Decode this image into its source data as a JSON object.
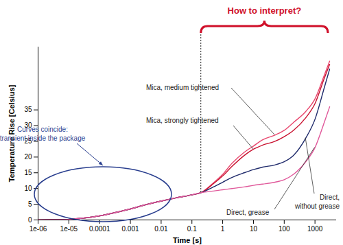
{
  "chart_data": {
    "type": "line",
    "x_label": "Time [s]",
    "y_label": "Temperature Rise [Celsius]",
    "annotations": [
      "How to interpret?",
      "Curves coincide: transient inside the package"
    ],
    "log": "x",
    "grid": false,
    "x": [
      1e-06,
      3e-06,
      1e-05,
      3e-05,
      0.0001,
      0.0003,
      0.001,
      0.003,
      0.01,
      0.03,
      0.1,
      0.2,
      0.5,
      1,
      2,
      5,
      10,
      20,
      50,
      100,
      200,
      500,
      1000,
      2000,
      3000
    ],
    "xlim": [
      1e-06,
      5000
    ],
    "xticks": [
      {
        "value": 1e-06,
        "label": "1e-06"
      },
      {
        "value": 1e-05,
        "label": "1e-05"
      },
      0.0001,
      0.001,
      0.01,
      0.1,
      1,
      10,
      100,
      1000
    ],
    "ylim": [
      0,
      55
    ],
    "yticks": [
      0,
      5,
      10,
      15,
      20,
      25,
      30,
      35
    ],
    "series": [
      {
        "name": "Mica, medium tightened",
        "color": "#e8476e",
        "values": [
          0,
          0.05,
          0.2,
          0.6,
          1.3,
          2.3,
          3.5,
          4.8,
          6,
          7,
          8,
          8.7,
          11.8,
          14.5,
          18,
          21.5,
          23.5,
          25.5,
          27,
          28.5,
          31,
          34.5,
          38.5,
          46,
          50.5
        ]
      },
      {
        "name": "Mica, strongly tightened",
        "color": "#c8102e",
        "values": [
          0,
          0.05,
          0.2,
          0.6,
          1.3,
          2.3,
          3.5,
          4.8,
          6,
          7,
          8,
          8.7,
          11.5,
          14,
          17,
          20.5,
          22.5,
          23.8,
          25,
          26.5,
          28.5,
          32.5,
          37,
          45,
          49.5
        ]
      },
      {
        "name": "Direct, without grease",
        "color": "#1f2a6b",
        "values": [
          0,
          0.05,
          0.2,
          0.6,
          1.3,
          2.3,
          3.5,
          4.8,
          6,
          7,
          8,
          8.7,
          10.5,
          12,
          13.5,
          15,
          16,
          16.8,
          17.5,
          18.5,
          20.5,
          26,
          32,
          42,
          48
        ]
      },
      {
        "name": "Direct, grease",
        "color": "#e0589a",
        "values": [
          0,
          0.05,
          0.2,
          0.6,
          1.3,
          2.3,
          3.5,
          4.8,
          6,
          7,
          8,
          8.7,
          9.2,
          9.6,
          10,
          10.5,
          11,
          11.4,
          12,
          12.8,
          14.5,
          18.5,
          23,
          31,
          36
        ]
      }
    ]
  }
}
